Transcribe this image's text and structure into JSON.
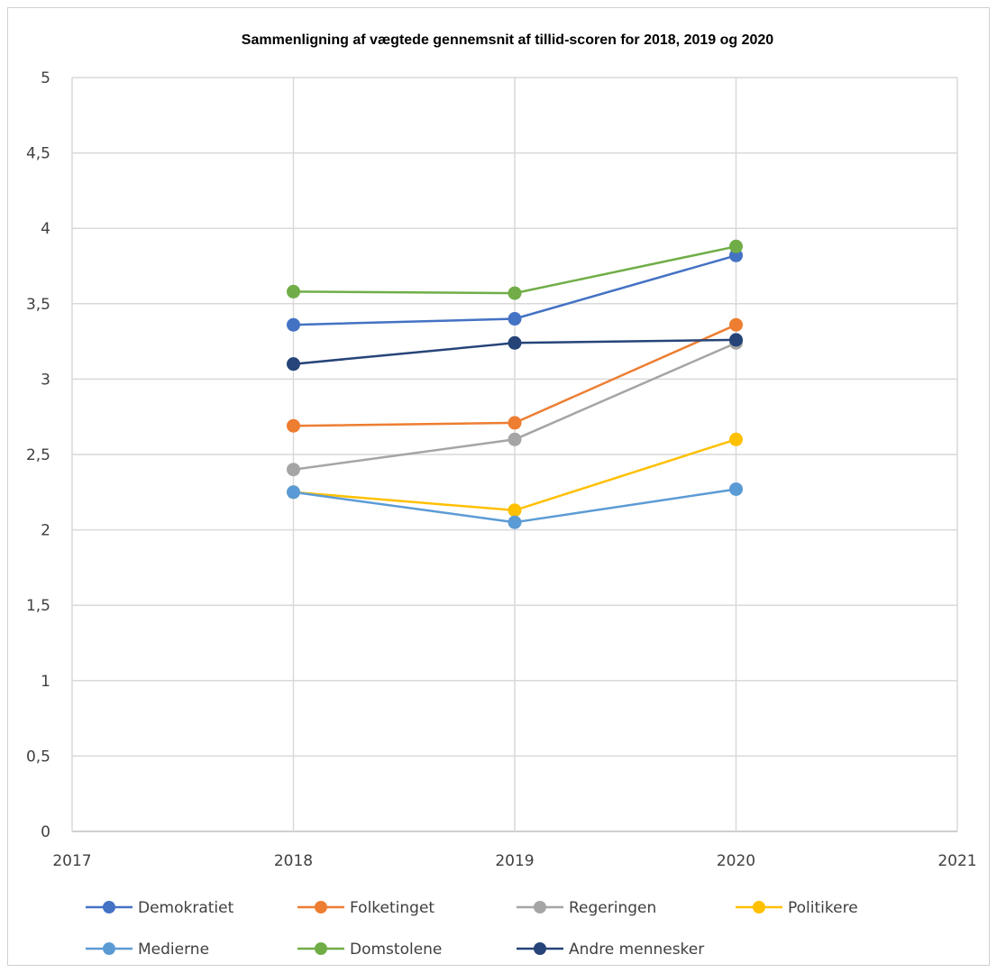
{
  "chart_data": {
    "type": "line",
    "title": "Sammenligning af vægtede gennemsnit af tillid-scoren for 2018, 2019 og 2020",
    "xlabel": "",
    "ylabel": "",
    "xlim": [
      2017,
      2021
    ],
    "ylim": [
      0,
      5
    ],
    "x_ticks": [
      "2017",
      "2018",
      "2019",
      "2020",
      "2021"
    ],
    "y_ticks": [
      "0",
      "0,5",
      "1",
      "1,5",
      "2",
      "2,5",
      "3",
      "3,5",
      "4",
      "4,5",
      "5"
    ],
    "x": [
      2018,
      2019,
      2020
    ],
    "grid": true,
    "legend_position": "bottom",
    "series": [
      {
        "name": "Demokratiet",
        "color": "#4472C4",
        "values": [
          3.36,
          3.4,
          3.82
        ]
      },
      {
        "name": "Folketinget",
        "color": "#ED7D31",
        "values": [
          2.69,
          2.71,
          3.36
        ]
      },
      {
        "name": "Regeringen",
        "color": "#A5A5A5",
        "values": [
          2.4,
          2.6,
          3.24
        ]
      },
      {
        "name": "Politikere",
        "color": "#FFC000",
        "values": [
          2.25,
          2.13,
          2.6
        ]
      },
      {
        "name": "Medierne",
        "color": "#5B9BD5",
        "values": [
          2.25,
          2.05,
          2.27
        ]
      },
      {
        "name": "Domstolene",
        "color": "#70AD47",
        "values": [
          3.58,
          3.57,
          3.88
        ]
      },
      {
        "name": "Andre mennesker",
        "color": "#264478",
        "values": [
          3.1,
          3.24,
          3.26
        ]
      }
    ]
  }
}
